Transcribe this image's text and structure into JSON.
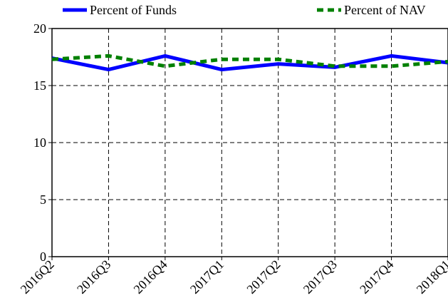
{
  "chart_data": {
    "type": "line",
    "categories": [
      "2016Q2",
      "2016Q3",
      "2016Q4",
      "2017Q1",
      "2017Q2",
      "2017Q3",
      "2017Q4",
      "2018Q1"
    ],
    "series": [
      {
        "name": "Percent of Funds",
        "color": "#0000ff",
        "style": "solid",
        "values": [
          17.4,
          16.4,
          17.6,
          16.4,
          16.9,
          16.6,
          17.6,
          17.0
        ]
      },
      {
        "name": "Percent of NAV",
        "color": "#008000",
        "style": "dashed",
        "values": [
          17.3,
          17.6,
          16.7,
          17.3,
          17.3,
          16.7,
          16.7,
          17.1
        ]
      }
    ],
    "ylim": [
      0,
      20
    ],
    "yticks": [
      0,
      5,
      10,
      15,
      20
    ],
    "grid": true
  }
}
